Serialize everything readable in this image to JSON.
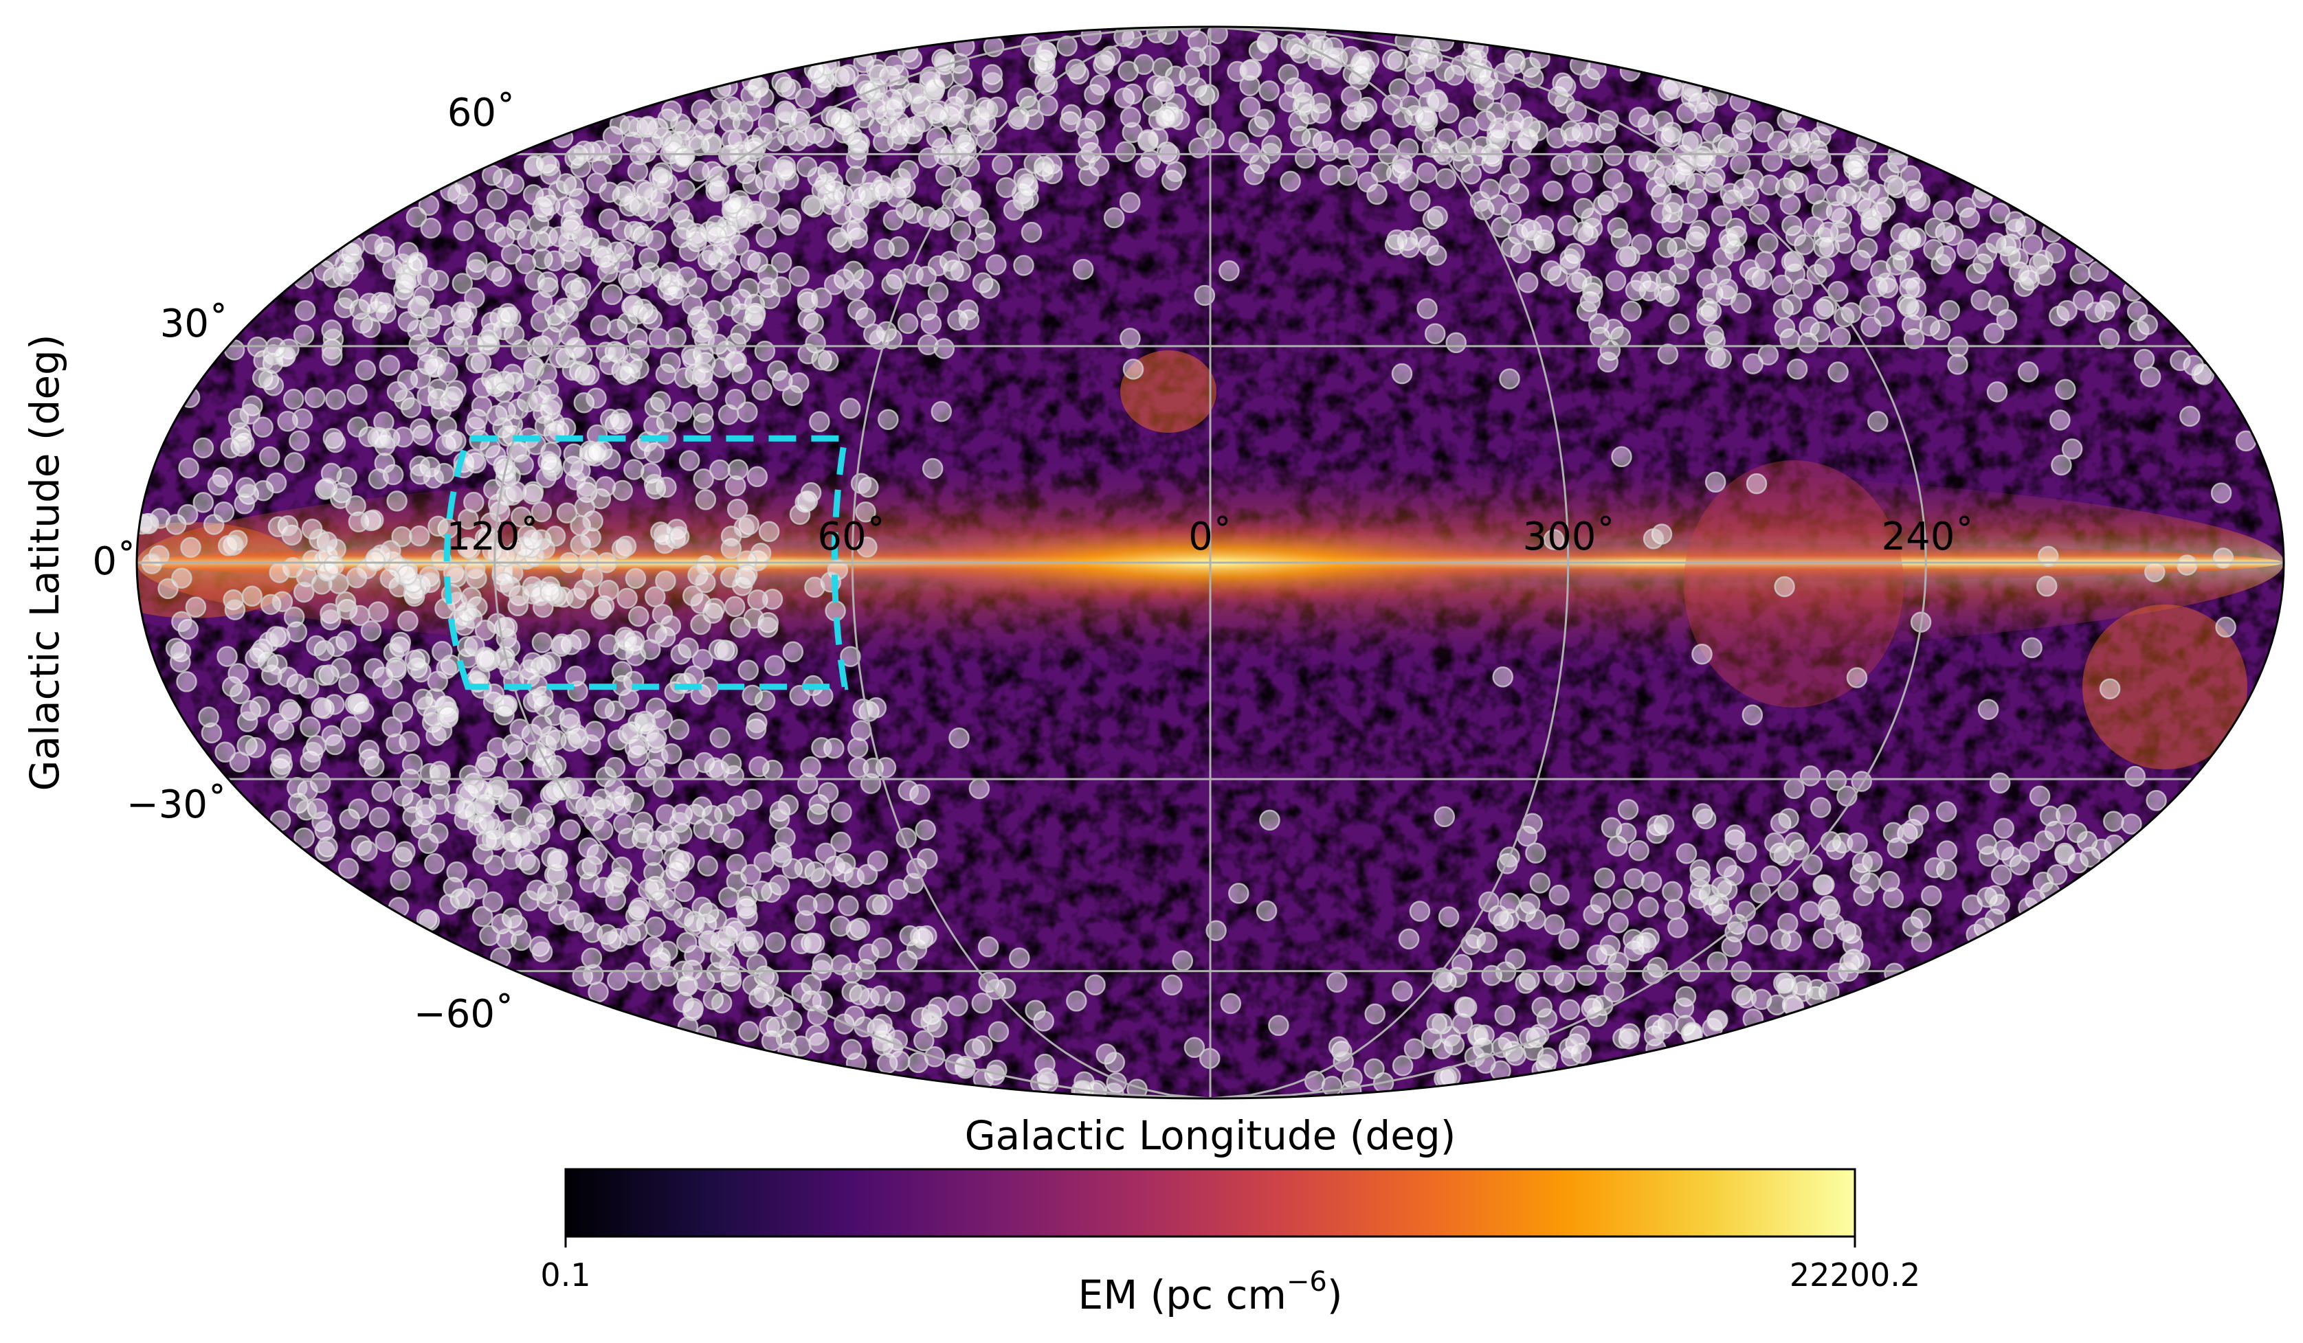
{
  "chart_data": {
    "type": "sky map (Mollweide projection) with scatter overlay",
    "projection": "Mollweide",
    "xlabel": "Galactic Longitude (deg)",
    "ylabel": "Galactic Latitude (deg)",
    "lat_ticks": [
      {
        "value": 60,
        "label": "60˚"
      },
      {
        "value": 30,
        "label": "30˚"
      },
      {
        "value": 0,
        "label": "0˚"
      },
      {
        "value": -30,
        "label": "−30˚"
      },
      {
        "value": -60,
        "label": "−60˚"
      }
    ],
    "lon_ticks": [
      {
        "value": 120,
        "label": "120˚"
      },
      {
        "value": 60,
        "label": "60˚"
      },
      {
        "value": 0,
        "label": "0˚"
      },
      {
        "value": 300,
        "label": "300˚"
      },
      {
        "value": 240,
        "label": "240˚"
      }
    ],
    "background_map": {
      "quantity": "EM",
      "colorbar_label": "EM (pc cm",
      "colorbar_exponent": "−6",
      "colorbar_label_close": ")",
      "colorbar_min_label": "0.1",
      "colorbar_max_label": "22200.2",
      "colormap": "inferno",
      "colormap_stops": [
        "#000004",
        "#1b0c41",
        "#4a0c6b",
        "#781c6d",
        "#a52c60",
        "#cf4446",
        "#ed6925",
        "#fb9b06",
        "#f7d13d",
        "#fcffa4"
      ],
      "features": "bright Galactic plane along latitude 0, strongest near longitude 0"
    },
    "highlight_box": {
      "lon_range": [
        63,
        128
      ],
      "lat_range": [
        -17,
        17
      ],
      "color": "#22d8e8",
      "style": "dashed"
    },
    "scatter_overlay": {
      "marker_color": "#ffffff",
      "marker_outline": "#cfcfcf",
      "concentration": "dense toward Galactic longitudes 60˚–180˚ and high latitudes, sparse toward the Galactic center"
    },
    "grid": true
  }
}
